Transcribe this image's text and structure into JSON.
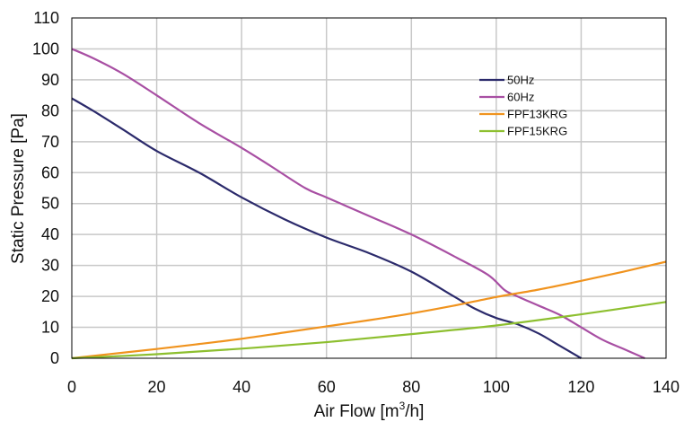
{
  "chart_data": {
    "type": "line",
    "title": "",
    "xlabel": "Air Flow [m",
    "xlabel_sup": "3",
    "xlabel_end": "/h]",
    "ylabel": "Static Pressure [Pa]",
    "xlim": [
      0,
      140
    ],
    "ylim": [
      0,
      110
    ],
    "xticks": [
      0,
      20,
      40,
      60,
      80,
      100,
      120,
      140
    ],
    "yticks": [
      0,
      10,
      20,
      30,
      40,
      50,
      60,
      70,
      80,
      90,
      100,
      110
    ],
    "grid": true,
    "legend_position": "top-right",
    "series": [
      {
        "name": "50Hz",
        "color": "#2b2a6b",
        "x": [
          0,
          5,
          12,
          20,
          30,
          40,
          50,
          60,
          70,
          80,
          90,
          95,
          100,
          105,
          110,
          115,
          120
        ],
        "y": [
          84,
          80,
          74,
          67,
          60,
          52,
          45,
          39,
          34,
          28,
          20,
          16,
          13,
          11,
          8,
          4,
          0
        ]
      },
      {
        "name": "60Hz",
        "color": "#a84fa3",
        "x": [
          0,
          5,
          12,
          20,
          30,
          40,
          47,
          55,
          60,
          70,
          80,
          90,
          98,
          102,
          105,
          110,
          115,
          120,
          125,
          130,
          135
        ],
        "y": [
          100,
          97,
          92,
          85,
          76,
          68,
          62,
          55,
          52,
          46,
          40,
          33,
          27,
          22,
          20,
          17,
          14,
          10,
          6,
          3,
          0
        ]
      },
      {
        "name": "FPF13KRG",
        "color": "#f0931e",
        "x": [
          0,
          10,
          20,
          30,
          40,
          50,
          60,
          70,
          80,
          90,
          100,
          110,
          120,
          130,
          140
        ],
        "y": [
          0,
          1.5,
          3,
          4.6,
          6.3,
          8.3,
          10.3,
          12.3,
          14.5,
          17,
          19.8,
          22.2,
          25,
          28,
          31.2
        ]
      },
      {
        "name": "FPF15KRG",
        "color": "#8dbf2f",
        "x": [
          0,
          20,
          40,
          60,
          80,
          100,
          120,
          140
        ],
        "y": [
          0,
          1.3,
          3.1,
          5.2,
          7.8,
          10.6,
          14.2,
          18.2
        ]
      }
    ]
  }
}
